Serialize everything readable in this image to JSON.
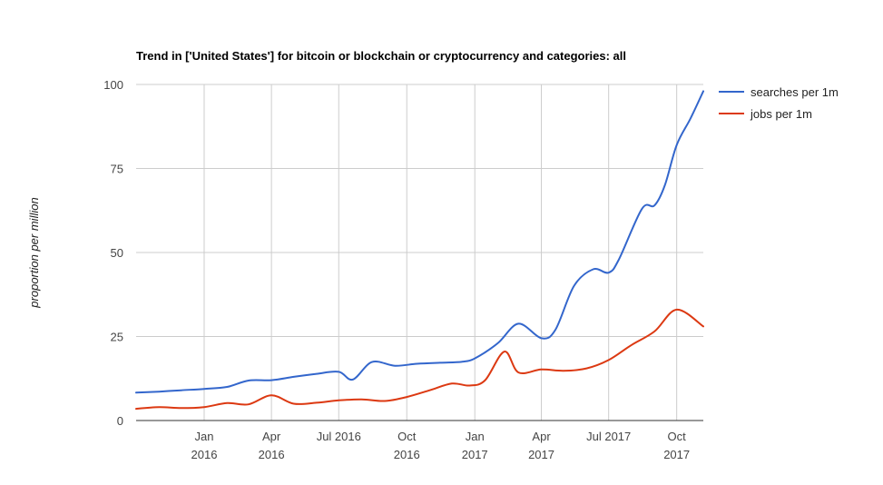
{
  "chart_data": {
    "type": "line",
    "title": "Trend in ['United States'] for bitcoin or blockchain or cryptocurrency and categories: all",
    "ylabel": "proportion per million",
    "xlabel": "",
    "ylim": [
      0,
      100
    ],
    "yticks": [
      "0",
      "25",
      "50",
      "75",
      "100"
    ],
    "xlim": [
      "2015-10-01",
      "2017-11-06"
    ],
    "xticks": [
      {
        "date": "2016-01-01",
        "line1": "Jan",
        "line2": "2016"
      },
      {
        "date": "2016-04-01",
        "line1": "Apr",
        "line2": "2016"
      },
      {
        "date": "2016-07-01",
        "line1": "Jul 2016",
        "line2": ""
      },
      {
        "date": "2016-10-01",
        "line1": "Oct",
        "line2": "2016"
      },
      {
        "date": "2017-01-01",
        "line1": "Jan",
        "line2": "2017"
      },
      {
        "date": "2017-04-01",
        "line1": "Apr",
        "line2": "2017"
      },
      {
        "date": "2017-07-01",
        "line1": "Jul 2017",
        "line2": ""
      },
      {
        "date": "2017-10-01",
        "line1": "Oct",
        "line2": "2017"
      }
    ],
    "grid": true,
    "legend_position": "top-right",
    "series": [
      {
        "name": "searches per 1m",
        "color": "#3366cc",
        "points": [
          [
            "2015-10-01",
            8.3
          ],
          [
            "2015-11-01",
            8.6
          ],
          [
            "2015-12-01",
            9.0
          ],
          [
            "2016-01-01",
            9.4
          ],
          [
            "2016-02-01",
            10.0
          ],
          [
            "2016-03-01",
            11.9
          ],
          [
            "2016-04-01",
            12.0
          ],
          [
            "2016-05-01",
            13.0
          ],
          [
            "2016-06-01",
            13.9
          ],
          [
            "2016-07-01",
            14.5
          ],
          [
            "2016-07-20",
            12.2
          ],
          [
            "2016-08-15",
            17.4
          ],
          [
            "2016-09-15",
            16.3
          ],
          [
            "2016-10-15",
            16.9
          ],
          [
            "2016-11-15",
            17.2
          ],
          [
            "2016-12-15",
            17.5
          ],
          [
            "2017-01-01",
            18.5
          ],
          [
            "2017-02-01",
            23.0
          ],
          [
            "2017-03-01",
            28.8
          ],
          [
            "2017-04-01",
            24.5
          ],
          [
            "2017-04-20",
            27.0
          ],
          [
            "2017-05-15",
            40.0
          ],
          [
            "2017-06-10",
            45.0
          ],
          [
            "2017-07-01",
            44.0
          ],
          [
            "2017-07-15",
            48.0
          ],
          [
            "2017-08-15",
            63.0
          ],
          [
            "2017-09-01",
            64.0
          ],
          [
            "2017-09-15",
            70.0
          ],
          [
            "2017-10-01",
            82.0
          ],
          [
            "2017-10-20",
            90.0
          ],
          [
            "2017-11-06",
            98.0
          ]
        ]
      },
      {
        "name": "jobs per 1m",
        "color": "#dc3912",
        "points": [
          [
            "2015-10-01",
            3.5
          ],
          [
            "2015-11-01",
            4.0
          ],
          [
            "2015-12-01",
            3.7
          ],
          [
            "2016-01-01",
            4.0
          ],
          [
            "2016-02-01",
            5.2
          ],
          [
            "2016-03-01",
            4.8
          ],
          [
            "2016-04-01",
            7.5
          ],
          [
            "2016-05-01",
            5.0
          ],
          [
            "2016-06-01",
            5.3
          ],
          [
            "2016-07-01",
            6.0
          ],
          [
            "2016-08-01",
            6.3
          ],
          [
            "2016-09-01",
            5.8
          ],
          [
            "2016-10-01",
            7.0
          ],
          [
            "2016-11-01",
            9.0
          ],
          [
            "2016-12-01",
            11.0
          ],
          [
            "2016-12-25",
            10.4
          ],
          [
            "2017-01-15",
            12.0
          ],
          [
            "2017-02-10",
            20.5
          ],
          [
            "2017-03-01",
            14.3
          ],
          [
            "2017-04-01",
            15.2
          ],
          [
            "2017-05-01",
            14.8
          ],
          [
            "2017-06-01",
            15.5
          ],
          [
            "2017-07-01",
            18.0
          ],
          [
            "2017-08-01",
            22.5
          ],
          [
            "2017-09-01",
            26.5
          ],
          [
            "2017-10-01",
            33.0
          ],
          [
            "2017-11-06",
            28.0
          ]
        ]
      }
    ]
  }
}
